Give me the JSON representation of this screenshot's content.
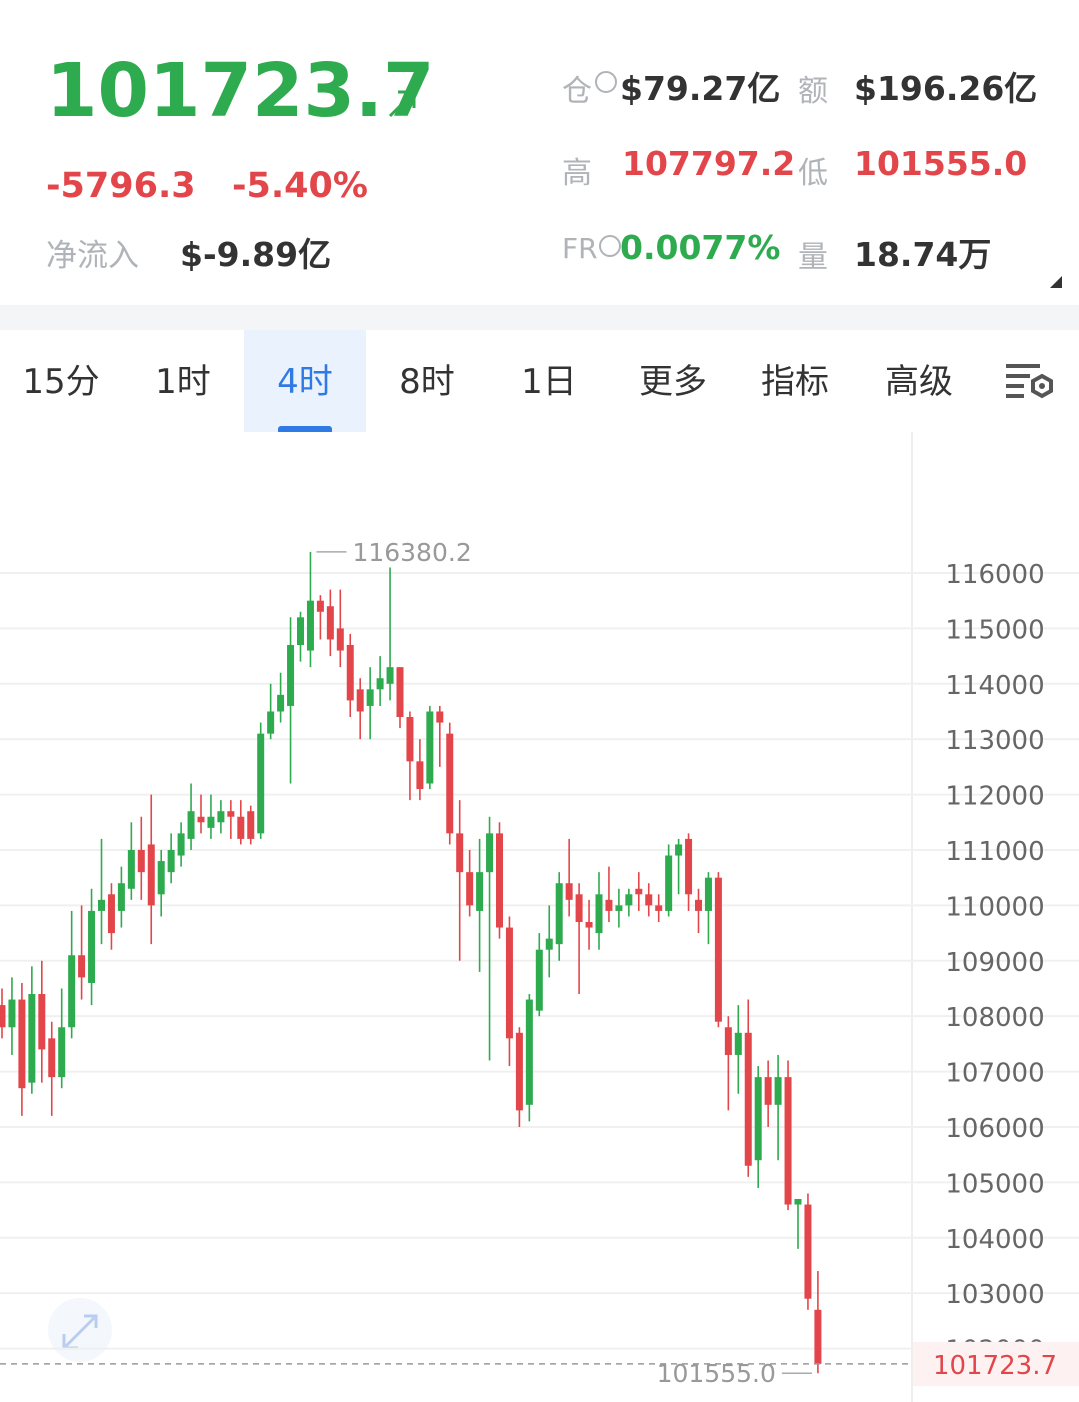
{
  "header": {
    "price": "101723.7",
    "change": "-5796.3",
    "change_pct": "-5.40%",
    "inflow_label": "净流入",
    "inflow_value": "$-9.89亿",
    "stats": [
      {
        "label": "仓",
        "value": "$79.27亿"
      },
      {
        "label": "额",
        "value": "$196.26亿"
      },
      {
        "label": "高",
        "value": "107797.2"
      },
      {
        "label": "低",
        "value": "101555.0"
      },
      {
        "label": "FR",
        "value": "0.0077%"
      },
      {
        "label": "量",
        "value": "18.74万"
      }
    ]
  },
  "tabs": [
    "15分",
    "1时",
    "4时",
    "8时",
    "1日",
    "更多",
    "指标",
    "高级"
  ],
  "chart_data": {
    "type": "candlestick",
    "up_color": "#2eaa4f",
    "down_color": "#e2464a",
    "open": [
      108200,
      107800,
      108300,
      106800,
      108400,
      107600,
      106900,
      107800,
      109100,
      108600,
      109900,
      110200,
      109900,
      110300,
      111000,
      111100,
      110200,
      110600,
      110900,
      111200,
      111600,
      111400,
      111500,
      111700,
      111600,
      111700,
      111300,
      113100,
      113500,
      113600,
      114700,
      114600,
      115500,
      115400,
      115000,
      114700,
      113900,
      113600,
      113900,
      114000,
      114300,
      113400,
      112600,
      112200,
      113500,
      113100,
      111300,
      110600,
      109900,
      110600,
      111300,
      109600,
      107700,
      106400,
      108100,
      109200,
      109300,
      110400,
      110200,
      109700,
      109500,
      110100,
      109900,
      110000,
      110300,
      110200,
      110000,
      109900,
      110900,
      111200,
      110100,
      109900,
      110500,
      107800,
      107300,
      107700,
      105400,
      106900,
      106400,
      106900,
      104600,
      104600,
      102700
    ],
    "high": [
      108500,
      108700,
      108600,
      108900,
      109000,
      107900,
      108500,
      109900,
      110000,
      110300,
      111200,
      110400,
      110700,
      111500,
      111600,
      112000,
      111000,
      111300,
      111500,
      112200,
      112000,
      112000,
      111900,
      111900,
      111900,
      111800,
      113300,
      114000,
      114200,
      115200,
      115300,
      116380.2,
      115600,
      115700,
      115700,
      114900,
      114100,
      114300,
      114500,
      116100,
      114300,
      113500,
      113000,
      113600,
      113600,
      113300,
      111900,
      111000,
      111200,
      111600,
      111500,
      109800,
      107800,
      108400,
      109500,
      110000,
      110600,
      111200,
      110400,
      110100,
      110600,
      110700,
      110300,
      110300,
      110600,
      110400,
      110200,
      111100,
      111200,
      111300,
      110300,
      110600,
      110600,
      108000,
      108200,
      108300,
      107100,
      107200,
      107300,
      107200,
      104700,
      104800,
      103400
    ],
    "low": [
      107600,
      107300,
      106200,
      106600,
      106800,
      106200,
      106700,
      107600,
      108300,
      108200,
      109300,
      109200,
      109600,
      110100,
      110100,
      109300,
      109800,
      110400,
      110700,
      111000,
      111300,
      111200,
      111300,
      111200,
      111100,
      111100,
      111200,
      113000,
      113300,
      112200,
      114400,
      114300,
      114800,
      114500,
      114300,
      113400,
      113000,
      113000,
      113600,
      113700,
      113200,
      111900,
      111900,
      112100,
      112500,
      111100,
      109000,
      109800,
      108800,
      107200,
      109400,
      107100,
      106000,
      106100,
      108000,
      108700,
      109000,
      109800,
      108400,
      109200,
      109200,
      109700,
      109600,
      109800,
      109900,
      109800,
      109700,
      109800,
      110200,
      109900,
      109500,
      109300,
      107800,
      106300,
      106600,
      105100,
      104900,
      106000,
      105400,
      104500,
      103800,
      102700,
      101555
    ],
    "close": [
      107800,
      108300,
      106700,
      108400,
      107400,
      106900,
      107800,
      109100,
      108700,
      109900,
      110100,
      109500,
      110400,
      111000,
      110600,
      110000,
      110800,
      111000,
      111300,
      111700,
      111500,
      111600,
      111700,
      111600,
      111200,
      111200,
      113100,
      113500,
      113800,
      114700,
      115200,
      115500,
      115300,
      114800,
      114600,
      113700,
      113500,
      113900,
      114100,
      114300,
      113400,
      112600,
      112100,
      113500,
      113300,
      111300,
      110600,
      110000,
      110600,
      111300,
      109600,
      107600,
      106300,
      108300,
      109200,
      109400,
      110400,
      110100,
      109700,
      109600,
      110200,
      109900,
      110000,
      110200,
      110200,
      110000,
      109900,
      110900,
      111100,
      110200,
      109900,
      110500,
      107900,
      107300,
      107700,
      105300,
      106900,
      106400,
      106900,
      104600,
      104700,
      102900,
      101723.7
    ],
    "max_label": "116380.2",
    "min_label": "101555.0",
    "last_label": "101723.7",
    "ylim": [
      101162,
      118545
    ],
    "yticks": [
      102000,
      103000,
      104000,
      105000,
      106000,
      107000,
      108000,
      109000,
      110000,
      111000,
      112000,
      113000,
      114000,
      115000,
      116000
    ],
    "grid": true
  }
}
